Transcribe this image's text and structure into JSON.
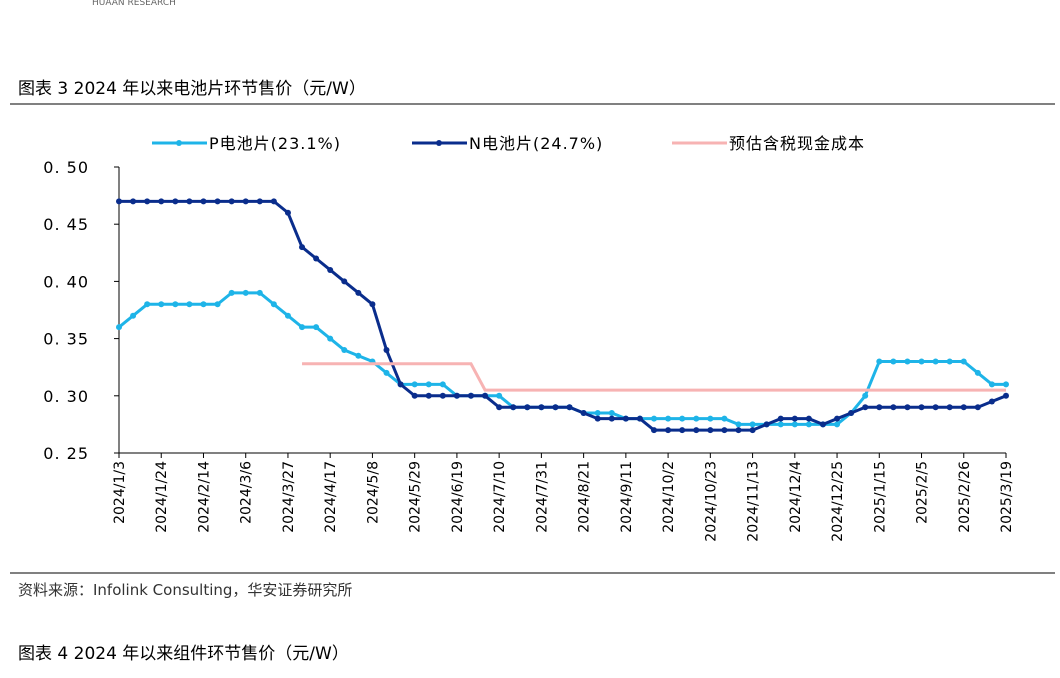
{
  "header": {
    "brand": "HUAAN RESEARCH"
  },
  "caption": "图表 3 2024 年以来电池片环节售价（元/W）",
  "source": "资料来源：Infolink Consulting，华安证券研究所",
  "next_caption": "图表 4 2024 年以来组件环节售价（元/W）",
  "chart_data": {
    "type": "line",
    "categories": [
      "2024/1/3",
      null,
      null,
      "2024/1/24",
      null,
      null,
      "2024/2/14",
      null,
      null,
      "2024/3/6",
      null,
      null,
      "2024/3/27",
      null,
      null,
      "2024/4/17",
      null,
      null,
      "2024/5/8",
      null,
      null,
      "2024/5/29",
      null,
      null,
      "2024/6/19",
      null,
      null,
      "2024/7/10",
      null,
      null,
      "2024/7/31",
      null,
      null,
      "2024/8/21",
      null,
      null,
      "2024/9/11",
      null,
      null,
      "2024/10/2",
      null,
      null,
      "2024/10/23",
      null,
      null,
      "2024/11/13",
      null,
      null,
      "2024/12/4",
      null,
      null,
      "2024/12/25",
      null,
      null,
      "2025/1/15",
      null,
      null,
      "2025/2/5",
      null,
      null,
      "2025/2/26",
      null,
      null,
      "2025/3/19"
    ],
    "series": [
      {
        "name": "P电池片(23.1%)",
        "color": "#1eb4e8",
        "marker": true,
        "values": [
          0.36,
          0.37,
          0.38,
          0.38,
          0.38,
          0.38,
          0.38,
          0.38,
          0.39,
          0.39,
          0.39,
          0.38,
          0.37,
          0.36,
          0.36,
          0.35,
          0.34,
          0.335,
          0.33,
          0.32,
          0.31,
          0.31,
          0.31,
          0.31,
          0.3,
          0.3,
          0.3,
          0.3,
          0.29,
          0.29,
          0.29,
          0.29,
          0.29,
          0.285,
          0.285,
          0.285,
          0.28,
          0.28,
          0.28,
          0.28,
          0.28,
          0.28,
          0.28,
          0.28,
          0.275,
          0.275,
          0.275,
          0.275,
          0.275,
          0.275,
          0.275,
          0.275,
          0.285,
          0.3,
          0.33,
          0.33,
          0.33,
          0.33,
          0.33,
          0.33,
          0.33,
          0.32,
          0.31,
          0.31
        ]
      },
      {
        "name": "N电池片(24.7%)",
        "color": "#0a2d8c",
        "marker": true,
        "values": [
          0.47,
          0.47,
          0.47,
          0.47,
          0.47,
          0.47,
          0.47,
          0.47,
          0.47,
          0.47,
          0.47,
          0.47,
          0.46,
          0.43,
          0.42,
          0.41,
          0.4,
          0.39,
          0.38,
          0.34,
          0.31,
          0.3,
          0.3,
          0.3,
          0.3,
          0.3,
          0.3,
          0.29,
          0.29,
          0.29,
          0.29,
          0.29,
          0.29,
          0.285,
          0.28,
          0.28,
          0.28,
          0.28,
          0.27,
          0.27,
          0.27,
          0.27,
          0.27,
          0.27,
          0.27,
          0.27,
          0.275,
          0.28,
          0.28,
          0.28,
          0.275,
          0.28,
          0.285,
          0.29,
          0.29,
          0.29,
          0.29,
          0.29,
          0.29,
          0.29,
          0.29,
          0.29,
          0.295,
          0.3
        ]
      },
      {
        "name": "预估含税现金成本",
        "color": "#f7b3b3",
        "marker": false,
        "values": [
          null,
          null,
          null,
          null,
          null,
          null,
          null,
          null,
          null,
          null,
          null,
          null,
          null,
          0.328,
          0.328,
          0.328,
          0.328,
          0.328,
          0.328,
          0.328,
          0.328,
          0.328,
          0.328,
          0.328,
          0.328,
          0.328,
          0.305,
          0.305,
          0.305,
          0.305,
          0.305,
          0.305,
          0.305,
          0.305,
          0.305,
          0.305,
          0.305,
          0.305,
          0.305,
          0.305,
          0.305,
          0.305,
          0.305,
          0.305,
          0.305,
          0.305,
          0.305,
          0.305,
          0.305,
          0.305,
          0.305,
          0.305,
          0.305,
          0.305,
          0.305,
          0.305,
          0.305,
          0.305,
          0.305,
          0.305,
          0.305,
          0.305,
          0.305,
          0.305
        ]
      }
    ],
    "ylim": [
      0.25,
      0.5
    ],
    "yticks": [
      {
        "value": 0.25,
        "label": "0. 25"
      },
      {
        "value": 0.3,
        "label": "0. 30"
      },
      {
        "value": 0.35,
        "label": "0. 35"
      },
      {
        "value": 0.4,
        "label": "0. 40"
      },
      {
        "value": 0.45,
        "label": "0. 45"
      },
      {
        "value": 0.5,
        "label": "0. 50"
      }
    ],
    "grid": false,
    "legend": "top"
  }
}
